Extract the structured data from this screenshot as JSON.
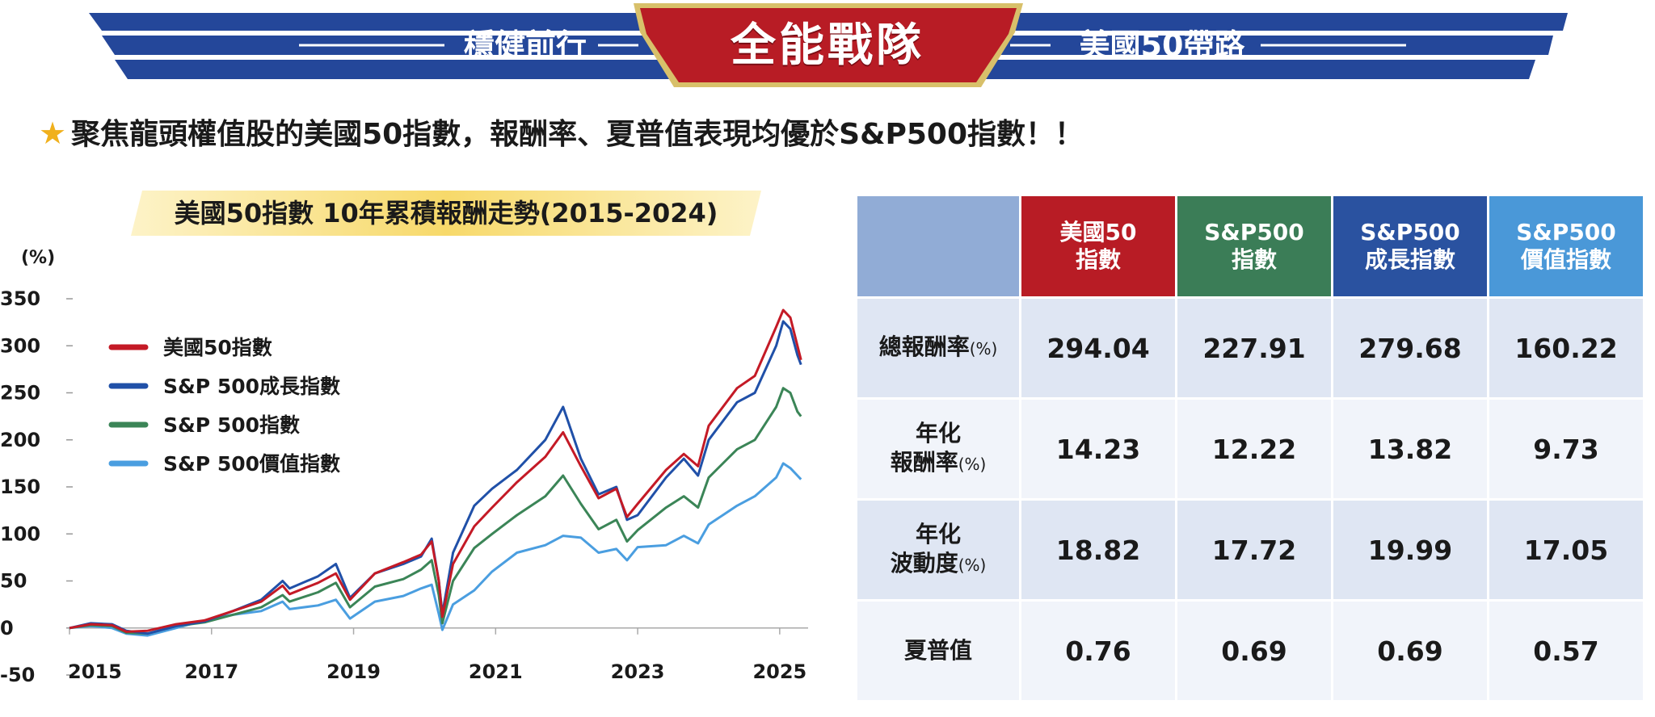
{
  "banner": {
    "left_text": "穩健前行",
    "center_text": "全能戰隊",
    "right_text": "美國50帶路"
  },
  "headline": {
    "star": "★",
    "text": "聚焦龍頭權值股的美國50指數，報酬率、夏普值表現均優於S&P500指數！！"
  },
  "colors": {
    "us50": "#c41a26",
    "sp500_growth": "#2050a8",
    "sp500": "#3b8557",
    "sp500_value": "#4a9ee0",
    "banner_blue": "#24479a",
    "banner_red": "#b81c25",
    "table_head_blank": "#91acd6"
  },
  "chart_data": {
    "type": "line",
    "title": "美國50指數  10年累積報酬走勢(2015-2024)",
    "ylabel": "(%)",
    "ylim": [
      -50,
      350
    ],
    "yticks": [
      "350",
      "300",
      "250",
      "200",
      "150",
      "100",
      "50",
      "0",
      "-50"
    ],
    "xlim": [
      2015,
      2025.4
    ],
    "xticks": [
      "2015",
      "2017",
      "2019",
      "2021",
      "2023",
      "2025"
    ],
    "legend_position": "upper-left",
    "series": [
      {
        "name": "美國50指數",
        "color": "#c41a26",
        "points": [
          [
            2015.0,
            0
          ],
          [
            2015.3,
            4
          ],
          [
            2015.6,
            3
          ],
          [
            2015.8,
            -4
          ],
          [
            2016.1,
            -3
          ],
          [
            2016.5,
            4
          ],
          [
            2016.9,
            8
          ],
          [
            2017.3,
            18
          ],
          [
            2017.7,
            28
          ],
          [
            2018.0,
            45
          ],
          [
            2018.1,
            36
          ],
          [
            2018.5,
            48
          ],
          [
            2018.75,
            58
          ],
          [
            2018.95,
            30
          ],
          [
            2019.3,
            58
          ],
          [
            2019.7,
            70
          ],
          [
            2019.95,
            78
          ],
          [
            2020.1,
            92
          ],
          [
            2020.2,
            50
          ],
          [
            2020.25,
            12
          ],
          [
            2020.4,
            68
          ],
          [
            2020.7,
            108
          ],
          [
            2020.95,
            128
          ],
          [
            2021.3,
            155
          ],
          [
            2021.7,
            182
          ],
          [
            2021.95,
            208
          ],
          [
            2022.2,
            172
          ],
          [
            2022.45,
            138
          ],
          [
            2022.7,
            148
          ],
          [
            2022.85,
            118
          ],
          [
            2023.0,
            132
          ],
          [
            2023.4,
            168
          ],
          [
            2023.65,
            185
          ],
          [
            2023.85,
            172
          ],
          [
            2024.0,
            215
          ],
          [
            2024.4,
            255
          ],
          [
            2024.65,
            268
          ],
          [
            2024.95,
            320
          ],
          [
            2025.05,
            338
          ],
          [
            2025.15,
            330
          ],
          [
            2025.25,
            300
          ],
          [
            2025.3,
            285
          ]
        ]
      },
      {
        "name": "S&P 500成長指數",
        "color": "#2050a8",
        "points": [
          [
            2015.0,
            0
          ],
          [
            2015.3,
            5
          ],
          [
            2015.6,
            4
          ],
          [
            2015.8,
            -3
          ],
          [
            2016.1,
            -6
          ],
          [
            2016.5,
            2
          ],
          [
            2016.9,
            7
          ],
          [
            2017.3,
            18
          ],
          [
            2017.7,
            30
          ],
          [
            2018.0,
            50
          ],
          [
            2018.1,
            42
          ],
          [
            2018.5,
            55
          ],
          [
            2018.75,
            68
          ],
          [
            2018.95,
            32
          ],
          [
            2019.3,
            58
          ],
          [
            2019.7,
            68
          ],
          [
            2019.95,
            76
          ],
          [
            2020.1,
            95
          ],
          [
            2020.2,
            50
          ],
          [
            2020.25,
            15
          ],
          [
            2020.4,
            80
          ],
          [
            2020.7,
            130
          ],
          [
            2020.95,
            148
          ],
          [
            2021.3,
            168
          ],
          [
            2021.7,
            200
          ],
          [
            2021.95,
            235
          ],
          [
            2022.2,
            180
          ],
          [
            2022.45,
            142
          ],
          [
            2022.7,
            150
          ],
          [
            2022.85,
            115
          ],
          [
            2023.0,
            120
          ],
          [
            2023.4,
            160
          ],
          [
            2023.65,
            180
          ],
          [
            2023.85,
            162
          ],
          [
            2024.0,
            200
          ],
          [
            2024.4,
            240
          ],
          [
            2024.65,
            250
          ],
          [
            2024.95,
            300
          ],
          [
            2025.05,
            326
          ],
          [
            2025.15,
            318
          ],
          [
            2025.25,
            290
          ],
          [
            2025.3,
            280
          ]
        ]
      },
      {
        "name": "S&P 500指數",
        "color": "#3b8557",
        "points": [
          [
            2015.0,
            0
          ],
          [
            2015.3,
            3
          ],
          [
            2015.6,
            2
          ],
          [
            2015.8,
            -5
          ],
          [
            2016.1,
            -6
          ],
          [
            2016.5,
            2
          ],
          [
            2016.9,
            6
          ],
          [
            2017.3,
            14
          ],
          [
            2017.7,
            22
          ],
          [
            2018.0,
            35
          ],
          [
            2018.1,
            28
          ],
          [
            2018.5,
            38
          ],
          [
            2018.75,
            48
          ],
          [
            2018.95,
            22
          ],
          [
            2019.3,
            44
          ],
          [
            2019.7,
            52
          ],
          [
            2019.95,
            62
          ],
          [
            2020.1,
            72
          ],
          [
            2020.2,
            35
          ],
          [
            2020.25,
            5
          ],
          [
            2020.4,
            50
          ],
          [
            2020.7,
            85
          ],
          [
            2020.95,
            100
          ],
          [
            2021.3,
            120
          ],
          [
            2021.7,
            140
          ],
          [
            2021.95,
            162
          ],
          [
            2022.2,
            132
          ],
          [
            2022.45,
            105
          ],
          [
            2022.7,
            115
          ],
          [
            2022.85,
            92
          ],
          [
            2023.0,
            104
          ],
          [
            2023.4,
            128
          ],
          [
            2023.65,
            140
          ],
          [
            2023.85,
            128
          ],
          [
            2024.0,
            160
          ],
          [
            2024.4,
            190
          ],
          [
            2024.65,
            200
          ],
          [
            2024.95,
            235
          ],
          [
            2025.05,
            255
          ],
          [
            2025.15,
            250
          ],
          [
            2025.25,
            230
          ],
          [
            2025.3,
            225
          ]
        ]
      },
      {
        "name": "S&P 500價值指數",
        "color": "#4a9ee0",
        "points": [
          [
            2015.0,
            0
          ],
          [
            2015.3,
            2
          ],
          [
            2015.6,
            0
          ],
          [
            2015.8,
            -6
          ],
          [
            2016.1,
            -8
          ],
          [
            2016.5,
            0
          ],
          [
            2016.9,
            8
          ],
          [
            2017.3,
            14
          ],
          [
            2017.7,
            18
          ],
          [
            2018.0,
            28
          ],
          [
            2018.1,
            20
          ],
          [
            2018.5,
            24
          ],
          [
            2018.75,
            30
          ],
          [
            2018.95,
            10
          ],
          [
            2019.3,
            28
          ],
          [
            2019.7,
            34
          ],
          [
            2019.95,
            42
          ],
          [
            2020.1,
            46
          ],
          [
            2020.2,
            15
          ],
          [
            2020.25,
            -2
          ],
          [
            2020.4,
            25
          ],
          [
            2020.7,
            40
          ],
          [
            2020.95,
            60
          ],
          [
            2021.3,
            80
          ],
          [
            2021.7,
            88
          ],
          [
            2021.95,
            98
          ],
          [
            2022.2,
            96
          ],
          [
            2022.45,
            80
          ],
          [
            2022.7,
            84
          ],
          [
            2022.85,
            72
          ],
          [
            2023.0,
            86
          ],
          [
            2023.4,
            88
          ],
          [
            2023.65,
            98
          ],
          [
            2023.85,
            90
          ],
          [
            2024.0,
            110
          ],
          [
            2024.4,
            130
          ],
          [
            2024.65,
            140
          ],
          [
            2024.95,
            160
          ],
          [
            2025.05,
            175
          ],
          [
            2025.15,
            170
          ],
          [
            2025.25,
            162
          ],
          [
            2025.3,
            158
          ]
        ]
      }
    ]
  },
  "table": {
    "headers": [
      {
        "line1": "美國50",
        "line2": "指數",
        "color": "#b81c25"
      },
      {
        "line1": "S&P500",
        "line2": "指數",
        "color": "#3b7d57"
      },
      {
        "line1": "S&P500",
        "line2": "成長指數",
        "color": "#2a52a0"
      },
      {
        "line1": "S&P500",
        "line2": "價值指數",
        "color": "#4a98d8"
      }
    ],
    "rows": [
      {
        "label_line1": "總報酬率",
        "label_line2": "",
        "unit": "(%)",
        "values": [
          "294.04",
          "227.91",
          "279.68",
          "160.22"
        ]
      },
      {
        "label_line1": "年化",
        "label_line2": "報酬率",
        "unit": "(%)",
        "values": [
          "14.23",
          "12.22",
          "13.82",
          "9.73"
        ]
      },
      {
        "label_line1": "年化",
        "label_line2": "波動度",
        "unit": "(%)",
        "values": [
          "18.82",
          "17.72",
          "19.99",
          "17.05"
        ]
      },
      {
        "label_line1": "夏普值",
        "label_line2": "",
        "unit": "",
        "values": [
          "0.76",
          "0.69",
          "0.69",
          "0.57"
        ]
      }
    ]
  }
}
